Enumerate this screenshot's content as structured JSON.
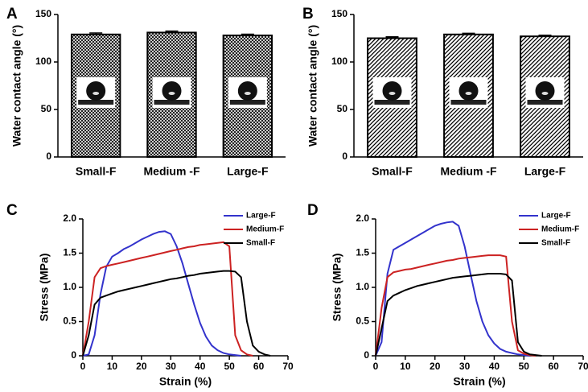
{
  "chart_data": [
    {
      "type": "bar",
      "label": "A",
      "ylabel": "Water contact angle (°)",
      "categories": [
        "Small-F",
        "Medium -F",
        "Large-F"
      ],
      "values": [
        129,
        131,
        128
      ],
      "errors": [
        1.5,
        1.5,
        1.2
      ],
      "color": "#000000",
      "hatch": "cross",
      "ylim": [
        0,
        150
      ],
      "yticks": [
        0,
        50,
        100,
        150
      ]
    },
    {
      "type": "bar",
      "label": "B",
      "ylabel": "Water contact angle (°)",
      "categories": [
        "Small-F",
        "Medium -F",
        "Large-F"
      ],
      "values": [
        125,
        129,
        127
      ],
      "errors": [
        1.5,
        1.2,
        1.2
      ],
      "color": "#000000",
      "hatch": "diagonal",
      "ylim": [
        0,
        150
      ],
      "yticks": [
        0,
        50,
        100,
        150
      ]
    },
    {
      "type": "line",
      "label": "C",
      "xlabel": "Strain (%)",
      "ylabel": "Stress (MPa)",
      "x": [
        0,
        2,
        4,
        6,
        8,
        10,
        12,
        14,
        16,
        18,
        20,
        22,
        24,
        26,
        28,
        30,
        32,
        34,
        36,
        38,
        40,
        42,
        44,
        46,
        48,
        50,
        52,
        54,
        56,
        58,
        60,
        62,
        64
      ],
      "series": [
        {
          "name": "Large-F",
          "color": "#3333cc",
          "values": [
            0,
            0.02,
            0.3,
            0.9,
            1.3,
            1.45,
            1.5,
            1.56,
            1.6,
            1.65,
            1.7,
            1.74,
            1.78,
            1.81,
            1.82,
            1.78,
            1.6,
            1.35,
            1.05,
            0.75,
            0.48,
            0.28,
            0.15,
            0.08,
            0.04,
            0.02,
            0.01,
            0,
            null,
            null,
            null,
            null,
            null
          ]
        },
        {
          "name": "Medium-F",
          "color": "#cc2222",
          "values": [
            0,
            0.5,
            1.15,
            1.28,
            1.31,
            1.33,
            1.35,
            1.37,
            1.39,
            1.41,
            1.43,
            1.45,
            1.47,
            1.49,
            1.51,
            1.53,
            1.55,
            1.57,
            1.59,
            1.6,
            1.62,
            1.63,
            1.64,
            1.65,
            1.66,
            1.6,
            0.3,
            0.08,
            0.02,
            0,
            null,
            null,
            null
          ]
        },
        {
          "name": "Small-F",
          "color": "#000000",
          "values": [
            0,
            0.3,
            0.75,
            0.85,
            0.88,
            0.91,
            0.94,
            0.96,
            0.98,
            1.0,
            1.02,
            1.04,
            1.06,
            1.08,
            1.1,
            1.12,
            1.13,
            1.15,
            1.17,
            1.18,
            1.2,
            1.21,
            1.22,
            1.23,
            1.24,
            1.24,
            1.23,
            1.15,
            0.5,
            0.15,
            0.06,
            0.02,
            0
          ]
        }
      ],
      "xlim": [
        0,
        70
      ],
      "xticks": [
        0,
        10,
        20,
        30,
        40,
        50,
        60,
        70
      ],
      "ylim": [
        0,
        2
      ],
      "yticks": [
        0,
        0.5,
        {
          "value": 1,
          "label": "1.0"
        },
        1.5,
        {
          "value": 2,
          "label": "2.0"
        }
      ],
      "legend": "upper right"
    },
    {
      "type": "line",
      "label": "D",
      "xlabel": "Strain (%)",
      "ylabel": "Stress (MPa)",
      "x": [
        0,
        2,
        4,
        6,
        8,
        10,
        12,
        14,
        16,
        18,
        20,
        22,
        24,
        26,
        28,
        30,
        32,
        34,
        36,
        38,
        40,
        42,
        44,
        46,
        48,
        50,
        52,
        54,
        56,
        58,
        60,
        62,
        64
      ],
      "series": [
        {
          "name": "Large-F",
          "color": "#3333cc",
          "values": [
            0,
            0.2,
            1.2,
            1.55,
            1.6,
            1.65,
            1.7,
            1.75,
            1.8,
            1.85,
            1.9,
            1.93,
            1.95,
            1.96,
            1.9,
            1.6,
            1.2,
            0.8,
            0.5,
            0.3,
            0.18,
            0.1,
            0.06,
            0.04,
            0.02,
            0.01,
            0,
            null,
            null,
            null,
            null,
            null,
            null
          ]
        },
        {
          "name": "Medium-F",
          "color": "#cc2222",
          "values": [
            0,
            0.7,
            1.15,
            1.22,
            1.24,
            1.26,
            1.27,
            1.29,
            1.31,
            1.33,
            1.35,
            1.37,
            1.39,
            1.4,
            1.42,
            1.43,
            1.44,
            1.45,
            1.46,
            1.47,
            1.47,
            1.47,
            1.45,
            0.5,
            0.08,
            0.03,
            0.01,
            0,
            null,
            null,
            null,
            null,
            null
          ]
        },
        {
          "name": "Small-F",
          "color": "#000000",
          "values": [
            0,
            0.4,
            0.8,
            0.88,
            0.92,
            0.96,
            0.99,
            1.02,
            1.04,
            1.06,
            1.08,
            1.1,
            1.12,
            1.14,
            1.15,
            1.16,
            1.17,
            1.18,
            1.19,
            1.2,
            1.2,
            1.2,
            1.19,
            1.1,
            0.2,
            0.06,
            0.02,
            0.01,
            0,
            null,
            null,
            null,
            null
          ]
        }
      ],
      "xlim": [
        0,
        70
      ],
      "xticks": [
        0,
        10,
        20,
        30,
        40,
        50,
        60,
        70
      ],
      "ylim": [
        0,
        2
      ],
      "yticks": [
        0,
        0.5,
        {
          "value": 1,
          "label": "1.0"
        },
        1.5,
        {
          "value": 2,
          "label": "2.0"
        }
      ],
      "legend": "upper right"
    }
  ]
}
